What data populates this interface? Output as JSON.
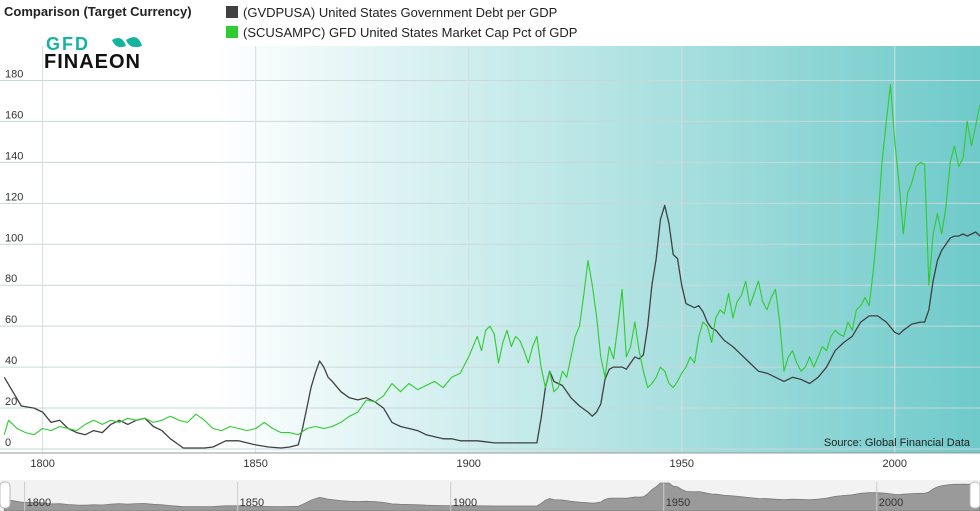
{
  "header": {
    "title": "Comparison (Target Currency)"
  },
  "logo": {
    "line1": "GFD",
    "line2": "FINAEON"
  },
  "source": "Source: Global Financial Data",
  "colors": {
    "debt": "#404040",
    "mcap": "#2ecc2e",
    "bg_left": "#ffffff",
    "bg_right": "#6fcaca"
  },
  "chart_data": {
    "type": "line",
    "xlim": [
      1790,
      2020
    ],
    "ylim": [
      0,
      190
    ],
    "y_ticks": [
      0,
      20,
      40,
      60,
      80,
      100,
      120,
      140,
      160,
      180
    ],
    "x_ticks": [
      1800,
      1850,
      1900,
      1950,
      2000
    ],
    "grid": true,
    "legend_position": "top",
    "series": [
      {
        "name": "(GVDPUSA) United States Government Debt per GDP",
        "color": "#404040",
        "points": [
          [
            1791,
            35
          ],
          [
            1793,
            28
          ],
          [
            1795,
            21
          ],
          [
            1798,
            20
          ],
          [
            1800,
            18
          ],
          [
            1802,
            13
          ],
          [
            1804,
            14
          ],
          [
            1806,
            10
          ],
          [
            1808,
            8
          ],
          [
            1810,
            7
          ],
          [
            1812,
            9
          ],
          [
            1814,
            8
          ],
          [
            1816,
            12
          ],
          [
            1818,
            14
          ],
          [
            1820,
            12
          ],
          [
            1822,
            14
          ],
          [
            1824,
            15
          ],
          [
            1826,
            11
          ],
          [
            1828,
            9
          ],
          [
            1830,
            5
          ],
          [
            1832,
            2
          ],
          [
            1833,
            0.5
          ],
          [
            1836,
            0.5
          ],
          [
            1838,
            0.5
          ],
          [
            1840,
            1
          ],
          [
            1843,
            4
          ],
          [
            1846,
            4
          ],
          [
            1848,
            3
          ],
          [
            1850,
            2
          ],
          [
            1853,
            1
          ],
          [
            1856,
            0.5
          ],
          [
            1858,
            1
          ],
          [
            1860,
            2
          ],
          [
            1861,
            10
          ],
          [
            1862,
            20
          ],
          [
            1863,
            30
          ],
          [
            1864,
            37
          ],
          [
            1865,
            43
          ],
          [
            1866,
            40
          ],
          [
            1867,
            35
          ],
          [
            1868,
            33
          ],
          [
            1870,
            28
          ],
          [
            1872,
            25
          ],
          [
            1874,
            24
          ],
          [
            1876,
            25
          ],
          [
            1878,
            23
          ],
          [
            1880,
            20
          ],
          [
            1882,
            13
          ],
          [
            1884,
            11
          ],
          [
            1886,
            10
          ],
          [
            1888,
            9
          ],
          [
            1890,
            7
          ],
          [
            1892,
            6
          ],
          [
            1894,
            5
          ],
          [
            1896,
            5
          ],
          [
            1898,
            4
          ],
          [
            1900,
            4
          ],
          [
            1902,
            4
          ],
          [
            1904,
            3.5
          ],
          [
            1906,
            3
          ],
          [
            1908,
            3
          ],
          [
            1910,
            3
          ],
          [
            1912,
            3
          ],
          [
            1914,
            3
          ],
          [
            1916,
            3
          ],
          [
            1917,
            15
          ],
          [
            1918,
            30
          ],
          [
            1919,
            38
          ],
          [
            1920,
            33
          ],
          [
            1922,
            31
          ],
          [
            1924,
            25
          ],
          [
            1926,
            21
          ],
          [
            1928,
            18
          ],
          [
            1929,
            16
          ],
          [
            1930,
            18
          ],
          [
            1931,
            22
          ],
          [
            1932,
            34
          ],
          [
            1933,
            39
          ],
          [
            1934,
            40
          ],
          [
            1936,
            40
          ],
          [
            1937,
            39
          ],
          [
            1938,
            42
          ],
          [
            1939,
            45
          ],
          [
            1940,
            44
          ],
          [
            1941,
            46
          ],
          [
            1942,
            60
          ],
          [
            1943,
            80
          ],
          [
            1944,
            93
          ],
          [
            1945,
            112
          ],
          [
            1946,
            119
          ],
          [
            1947,
            110
          ],
          [
            1948,
            95
          ],
          [
            1949,
            93
          ],
          [
            1950,
            80
          ],
          [
            1951,
            71
          ],
          [
            1952,
            70
          ],
          [
            1953,
            69
          ],
          [
            1954,
            70
          ],
          [
            1955,
            67
          ],
          [
            1956,
            62
          ],
          [
            1957,
            59
          ],
          [
            1958,
            58
          ],
          [
            1960,
            53
          ],
          [
            1962,
            50
          ],
          [
            1964,
            46
          ],
          [
            1966,
            42
          ],
          [
            1968,
            38
          ],
          [
            1970,
            37
          ],
          [
            1972,
            35
          ],
          [
            1974,
            33
          ],
          [
            1976,
            35
          ],
          [
            1978,
            34
          ],
          [
            1980,
            32
          ],
          [
            1982,
            35
          ],
          [
            1984,
            40
          ],
          [
            1986,
            48
          ],
          [
            1988,
            52
          ],
          [
            1990,
            55
          ],
          [
            1992,
            62
          ],
          [
            1994,
            65
          ],
          [
            1996,
            65
          ],
          [
            1998,
            62
          ],
          [
            2000,
            57
          ],
          [
            2001,
            56
          ],
          [
            2002,
            58
          ],
          [
            2004,
            61
          ],
          [
            2006,
            62
          ],
          [
            2007,
            62
          ],
          [
            2008,
            68
          ],
          [
            2009,
            82
          ],
          [
            2010,
            92
          ],
          [
            2011,
            97
          ],
          [
            2012,
            100
          ],
          [
            2013,
            103
          ],
          [
            2014,
            104
          ],
          [
            2015,
            104
          ],
          [
            2016,
            105
          ],
          [
            2017,
            104
          ],
          [
            2018,
            105
          ],
          [
            2019,
            106
          ],
          [
            2020,
            104
          ]
        ]
      },
      {
        "name": "(SCUSAMPC) GFD United States Market Cap Pct of GDP",
        "color": "#2ecc2e",
        "points": [
          [
            1791,
            7
          ],
          [
            1792,
            14
          ],
          [
            1794,
            10
          ],
          [
            1796,
            8
          ],
          [
            1798,
            7
          ],
          [
            1800,
            10
          ],
          [
            1802,
            9
          ],
          [
            1804,
            11
          ],
          [
            1806,
            10
          ],
          [
            1808,
            9
          ],
          [
            1810,
            12
          ],
          [
            1812,
            14
          ],
          [
            1814,
            12
          ],
          [
            1816,
            14
          ],
          [
            1818,
            13
          ],
          [
            1820,
            15
          ],
          [
            1822,
            14
          ],
          [
            1824,
            15
          ],
          [
            1826,
            13
          ],
          [
            1828,
            14
          ],
          [
            1830,
            16
          ],
          [
            1832,
            14
          ],
          [
            1834,
            13
          ],
          [
            1836,
            17
          ],
          [
            1838,
            14
          ],
          [
            1840,
            10
          ],
          [
            1842,
            9
          ],
          [
            1844,
            11
          ],
          [
            1846,
            10
          ],
          [
            1848,
            9
          ],
          [
            1850,
            10
          ],
          [
            1852,
            13
          ],
          [
            1854,
            10
          ],
          [
            1856,
            8
          ],
          [
            1858,
            8
          ],
          [
            1860,
            7
          ],
          [
            1862,
            10
          ],
          [
            1864,
            11
          ],
          [
            1866,
            10
          ],
          [
            1868,
            11
          ],
          [
            1870,
            13
          ],
          [
            1872,
            16
          ],
          [
            1874,
            18
          ],
          [
            1876,
            24
          ],
          [
            1878,
            23
          ],
          [
            1880,
            26
          ],
          [
            1882,
            32
          ],
          [
            1884,
            28
          ],
          [
            1886,
            32
          ],
          [
            1888,
            29
          ],
          [
            1890,
            31
          ],
          [
            1892,
            33
          ],
          [
            1894,
            30
          ],
          [
            1896,
            35
          ],
          [
            1898,
            37
          ],
          [
            1900,
            45
          ],
          [
            1901,
            50
          ],
          [
            1902,
            55
          ],
          [
            1903,
            48
          ],
          [
            1904,
            58
          ],
          [
            1905,
            60
          ],
          [
            1906,
            56
          ],
          [
            1907,
            42
          ],
          [
            1908,
            52
          ],
          [
            1909,
            58
          ],
          [
            1910,
            50
          ],
          [
            1911,
            55
          ],
          [
            1912,
            53
          ],
          [
            1913,
            48
          ],
          [
            1914,
            42
          ],
          [
            1915,
            50
          ],
          [
            1916,
            55
          ],
          [
            1917,
            40
          ],
          [
            1918,
            30
          ],
          [
            1919,
            38
          ],
          [
            1920,
            28
          ],
          [
            1921,
            30
          ],
          [
            1922,
            38
          ],
          [
            1923,
            35
          ],
          [
            1924,
            45
          ],
          [
            1925,
            55
          ],
          [
            1926,
            60
          ],
          [
            1927,
            75
          ],
          [
            1928,
            92
          ],
          [
            1929,
            80
          ],
          [
            1930,
            65
          ],
          [
            1931,
            45
          ],
          [
            1932,
            35
          ],
          [
            1933,
            50
          ],
          [
            1934,
            44
          ],
          [
            1935,
            60
          ],
          [
            1936,
            78
          ],
          [
            1937,
            45
          ],
          [
            1938,
            50
          ],
          [
            1939,
            62
          ],
          [
            1940,
            48
          ],
          [
            1941,
            38
          ],
          [
            1942,
            30
          ],
          [
            1943,
            32
          ],
          [
            1944,
            35
          ],
          [
            1945,
            40
          ],
          [
            1946,
            38
          ],
          [
            1947,
            32
          ],
          [
            1948,
            30
          ],
          [
            1949,
            33
          ],
          [
            1950,
            37
          ],
          [
            1951,
            40
          ],
          [
            1952,
            45
          ],
          [
            1953,
            42
          ],
          [
            1954,
            55
          ],
          [
            1955,
            62
          ],
          [
            1956,
            60
          ],
          [
            1957,
            52
          ],
          [
            1958,
            64
          ],
          [
            1959,
            68
          ],
          [
            1960,
            66
          ],
          [
            1961,
            76
          ],
          [
            1962,
            64
          ],
          [
            1963,
            72
          ],
          [
            1964,
            75
          ],
          [
            1965,
            82
          ],
          [
            1966,
            70
          ],
          [
            1967,
            76
          ],
          [
            1968,
            82
          ],
          [
            1969,
            72
          ],
          [
            1970,
            68
          ],
          [
            1971,
            74
          ],
          [
            1972,
            78
          ],
          [
            1973,
            62
          ],
          [
            1974,
            38
          ],
          [
            1975,
            45
          ],
          [
            1976,
            48
          ],
          [
            1977,
            42
          ],
          [
            1978,
            38
          ],
          [
            1979,
            40
          ],
          [
            1980,
            45
          ],
          [
            1981,
            40
          ],
          [
            1982,
            45
          ],
          [
            1983,
            50
          ],
          [
            1984,
            48
          ],
          [
            1985,
            55
          ],
          [
            1986,
            58
          ],
          [
            1987,
            56
          ],
          [
            1988,
            55
          ],
          [
            1989,
            62
          ],
          [
            1990,
            58
          ],
          [
            1991,
            68
          ],
          [
            1992,
            70
          ],
          [
            1993,
            74
          ],
          [
            1994,
            70
          ],
          [
            1995,
            88
          ],
          [
            1996,
            110
          ],
          [
            1997,
            140
          ],
          [
            1998,
            160
          ],
          [
            1999,
            178
          ],
          [
            2000,
            150
          ],
          [
            2001,
            130
          ],
          [
            2002,
            105
          ],
          [
            2003,
            125
          ],
          [
            2004,
            130
          ],
          [
            2005,
            138
          ],
          [
            2006,
            140
          ],
          [
            2007,
            139
          ],
          [
            2008,
            80
          ],
          [
            2009,
            105
          ],
          [
            2010,
            115
          ],
          [
            2011,
            105
          ],
          [
            2012,
            118
          ],
          [
            2013,
            140
          ],
          [
            2014,
            148
          ],
          [
            2015,
            138
          ],
          [
            2016,
            142
          ],
          [
            2017,
            160
          ],
          [
            2018,
            148
          ],
          [
            2019,
            158
          ],
          [
            2020,
            168
          ]
        ]
      }
    ]
  },
  "navigator": {
    "x_ticks": [
      1800,
      1850,
      1900,
      1950,
      2000
    ]
  }
}
